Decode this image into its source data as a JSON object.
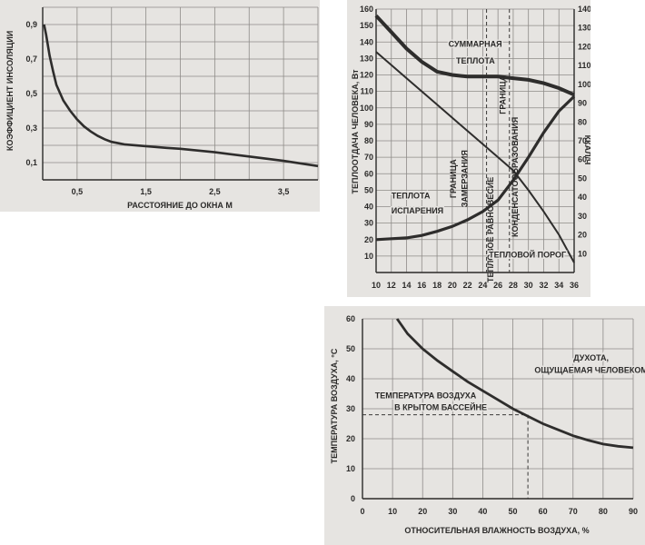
{
  "chart_data": [
    {
      "type": "line",
      "xlabel": "РАССТОЯНИЕ ДО ОКНА  М",
      "ylabel": "КОЭФФИЦИЕНТ ИНСОЛЯЦИИ",
      "xlim": [
        0,
        4
      ],
      "ylim": [
        0,
        1
      ],
      "xticks": [
        0.5,
        1.5,
        2.5,
        3.5
      ],
      "xtick_labels": [
        "0,5",
        "1,5",
        "2,5",
        "3,5"
      ],
      "yticks": [
        0.1,
        0.3,
        0.5,
        0.7,
        0.9
      ],
      "ytick_labels": [
        "0,1",
        "0,3",
        "0,5",
        "0,7",
        "0,9"
      ],
      "grid": true,
      "series": [
        {
          "x": [
            0.02,
            0.05,
            0.1,
            0.15,
            0.2,
            0.3,
            0.4,
            0.5,
            0.6,
            0.7,
            0.8,
            0.9,
            1.0,
            1.2,
            1.5,
            1.8,
            2.0,
            2.5,
            3.0,
            3.5,
            4.0
          ],
          "y": [
            0.9,
            0.84,
            0.72,
            0.63,
            0.55,
            0.46,
            0.4,
            0.35,
            0.31,
            0.28,
            0.255,
            0.235,
            0.22,
            0.205,
            0.195,
            0.185,
            0.18,
            0.16,
            0.135,
            0.11,
            0.08
          ]
        }
      ]
    },
    {
      "type": "line",
      "ylabel_left": "ТЕПЛООТДАЧА ЧЕЛОВЕКА, Вт",
      "ylabel_right": "ККАЛ/Ч",
      "xlim": [
        10,
        36
      ],
      "ylim_left": [
        0,
        160
      ],
      "ylim_right": [
        0,
        140
      ],
      "xticks": [
        10,
        12,
        14,
        16,
        18,
        20,
        22,
        24,
        26,
        28,
        30,
        32,
        34,
        36
      ],
      "xtick_labels": [
        "10",
        "12",
        "14",
        "16",
        "18",
        "20",
        "22",
        "24",
        "26",
        "28",
        "30",
        "32",
        "34",
        "36"
      ],
      "yticks_left": [
        10,
        20,
        30,
        40,
        50,
        60,
        70,
        80,
        90,
        100,
        110,
        120,
        130,
        140,
        150,
        160
      ],
      "ytick_labels_left": [
        "10",
        "20",
        "30",
        "40",
        "50",
        "60",
        "70",
        "80",
        "90",
        "100",
        "110",
        "120",
        "130",
        "140",
        "150",
        "160"
      ],
      "yticks_right": [
        10,
        20,
        30,
        40,
        50,
        60,
        70,
        80,
        90,
        100,
        110,
        120,
        130,
        140
      ],
      "ytick_labels_right": [
        "10",
        "20",
        "30",
        "40",
        "50",
        "60",
        "70",
        "80",
        "90",
        "100",
        "110",
        "120",
        "130",
        "140"
      ],
      "grid": true,
      "series": [
        {
          "x": [
            10,
            12,
            14,
            16,
            18,
            20,
            22,
            24,
            26,
            28,
            30,
            32,
            34,
            36
          ],
          "y": [
            156,
            146,
            136,
            128,
            122,
            120,
            119,
            119,
            119,
            118,
            117,
            115,
            112,
            108
          ]
        },
        {
          "x": [
            10,
            12,
            14,
            16,
            18,
            20,
            22,
            24,
            26,
            28,
            30,
            32,
            34,
            36
          ],
          "y": [
            134,
            126,
            118,
            110,
            102,
            94,
            86,
            78,
            70,
            62,
            50,
            37,
            23,
            6
          ]
        },
        {
          "x": [
            10,
            12,
            14,
            16,
            18,
            20,
            22,
            24,
            26,
            28,
            30,
            32,
            34,
            36
          ],
          "y": [
            20,
            20.5,
            21,
            22.5,
            25,
            28,
            32,
            37,
            44,
            56,
            70,
            85,
            98,
            107
          ]
        }
      ],
      "vlines": [
        24.5,
        27.5
      ],
      "annotations": [
        {
          "text": "СУММАРНАЯ",
          "x": 19.5,
          "y": 137
        },
        {
          "text": "ТЕПЛОТА",
          "x": 20.5,
          "y": 127
        },
        {
          "text": "ТЕПЛОТА",
          "x": 12,
          "y": 45
        },
        {
          "text": "ИСПАРЕНИЯ",
          "x": 12,
          "y": 36
        },
        {
          "text": "ГРАНИЦА",
          "x": 20.5,
          "y": 57,
          "rotate": -90
        },
        {
          "text": "ЗАМЕРЗАНИЯ",
          "x": 22,
          "y": 57,
          "rotate": -90
        },
        {
          "text": "ТЕПЛОВОЕ РАВНОВЕСИЕ",
          "x": 25.4,
          "y": 26,
          "rotate": -90
        },
        {
          "text": "ГРАНИЦА",
          "x": 27,
          "y": 108,
          "rotate": -90
        },
        {
          "text": "КОНДЕНСАТООБРАЗОВАНИЯ",
          "x": 28.6,
          "y": 58,
          "rotate": -90
        },
        {
          "text": "ТЕПЛОВОЙ ПОРОГ",
          "x": 24.8,
          "y": 9
        }
      ]
    },
    {
      "type": "line",
      "xlabel": "ОТНОСИТЕЛЬНАЯ ВЛАЖНОСТЬ ВОЗДУХА, %",
      "ylabel": "ТЕМПЕРАТУРА ВОЗДУХА, °С",
      "xlim": [
        0,
        90
      ],
      "ylim": [
        0,
        60
      ],
      "xticks": [
        0,
        10,
        20,
        30,
        40,
        50,
        60,
        70,
        80,
        90
      ],
      "xtick_labels": [
        "0",
        "10",
        "20",
        "30",
        "40",
        "50",
        "60",
        "70",
        "80",
        "90"
      ],
      "yticks": [
        0,
        10,
        20,
        30,
        40,
        50,
        60
      ],
      "ytick_labels": [
        "0",
        "10",
        "20",
        "30",
        "40",
        "50",
        "60"
      ],
      "grid": true,
      "series": [
        {
          "x": [
            11.5,
            15,
            20,
            25,
            30,
            35,
            40,
            45,
            50,
            55,
            60,
            65,
            70,
            75,
            80,
            85,
            90
          ],
          "y": [
            60,
            55,
            50,
            46,
            42.5,
            39,
            36,
            33,
            30,
            27.5,
            25,
            23,
            21,
            19.5,
            18.2,
            17.5,
            17
          ]
        }
      ],
      "hline_dashed": {
        "y": 28,
        "x_end": 55
      },
      "vline_dashed": {
        "x": 55,
        "y_end": 28
      },
      "annotations": [
        {
          "text": "ДУХОТА,",
          "x": 76,
          "y": 46
        },
        {
          "text": "ОЩУЩАЕМАЯ ЧЕЛОВЕКОМ",
          "x": 76,
          "y": 42
        },
        {
          "text": "ТЕМПЕРАТУРА ВОЗДУХА",
          "x": 21,
          "y": 33.5
        },
        {
          "text": "В КРЫТОМ БАССЕЙНЕ",
          "x": 26,
          "y": 29.5
        }
      ]
    }
  ]
}
